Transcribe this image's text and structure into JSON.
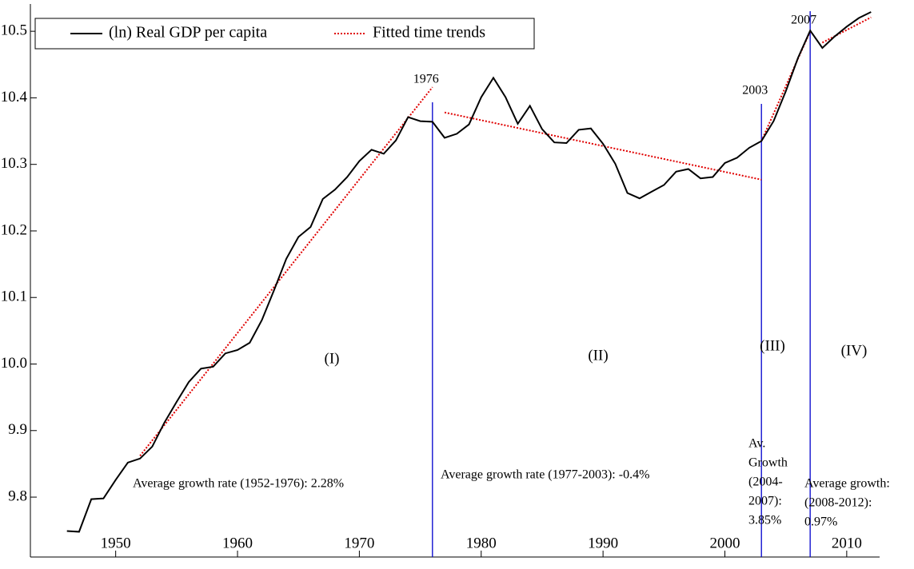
{
  "chart_data": {
    "type": "line",
    "x": [
      1946,
      1947,
      1948,
      1949,
      1950,
      1951,
      1952,
      1953,
      1954,
      1955,
      1956,
      1957,
      1958,
      1959,
      1960,
      1961,
      1962,
      1963,
      1964,
      1965,
      1966,
      1967,
      1968,
      1969,
      1970,
      1971,
      1972,
      1973,
      1974,
      1975,
      1976,
      1977,
      1978,
      1979,
      1980,
      1981,
      1982,
      1983,
      1984,
      1985,
      1986,
      1987,
      1988,
      1989,
      1990,
      1991,
      1992,
      1993,
      1994,
      1995,
      1996,
      1997,
      1998,
      1999,
      2000,
      2001,
      2002,
      2003,
      2004,
      2005,
      2006,
      2007,
      2008,
      2009,
      2010,
      2011,
      2012
    ],
    "series": [
      {
        "name": "(ln) Real GDP per capita",
        "color": "#000000",
        "values": [
          9.749,
          9.748,
          9.797,
          9.798,
          9.826,
          9.852,
          9.858,
          9.876,
          9.912,
          9.943,
          9.973,
          9.993,
          9.996,
          10.016,
          10.021,
          10.032,
          10.066,
          10.111,
          10.158,
          10.191,
          10.206,
          10.248,
          10.262,
          10.281,
          10.305,
          10.322,
          10.316,
          10.336,
          10.371,
          10.365,
          10.364,
          10.34,
          10.346,
          10.36,
          10.401,
          10.43,
          10.401,
          10.361,
          10.388,
          10.353,
          10.333,
          10.332,
          10.352,
          10.354,
          10.331,
          10.301,
          10.257,
          10.249,
          10.259,
          10.269,
          10.289,
          10.293,
          10.279,
          10.281,
          10.302,
          10.31,
          10.325,
          10.335,
          10.365,
          10.41,
          10.46,
          10.501,
          10.475,
          10.492,
          10.507,
          10.52,
          10.529
        ]
      },
      {
        "name": "Fitted time trends",
        "color": "#e00000",
        "dotted": true,
        "x": [
          1952,
          1976,
          null,
          1977,
          2003,
          null,
          2003,
          2007,
          null,
          2008,
          2012
        ],
        "values": [
          9.862,
          10.416,
          null,
          10.378,
          10.277,
          null,
          10.335,
          10.5,
          null,
          10.483,
          10.521
        ]
      }
    ],
    "vlines": [
      1976,
      2003,
      2007
    ],
    "vline_color": "#0000cc",
    "periods": [
      "(I)",
      "(II)",
      "(III)",
      "(IV)"
    ],
    "annotations": [
      "Average growth rate (1952-1976): 2.28%",
      "Average growth rate (1977-2003): -0.4%",
      [
        "Av.",
        "Growth",
        "(2004-",
        "2007):",
        "3.85%"
      ],
      [
        "Average growth:",
        "(2008-2012):",
        "0.97%"
      ]
    ],
    "xlim": [
      1943,
      2012.7
    ],
    "xticks": [
      1950,
      1960,
      1970,
      1980,
      1990,
      2000,
      2010
    ],
    "ylim": [
      9.71,
      10.541
    ],
    "yticks": [
      {
        "value": 9.8,
        "label": "9.8"
      },
      {
        "value": 9.9,
        "label": "9.9"
      },
      {
        "value": 10,
        "label": "10.0"
      },
      {
        "value": 10.1,
        "label": "10.1"
      },
      {
        "value": 10.2,
        "label": "10.2"
      },
      {
        "value": 10.3,
        "label": "10.3"
      },
      {
        "value": 10.4,
        "label": "10.4"
      },
      {
        "value": 10.5,
        "label": "10.5"
      }
    ],
    "legend": "top-left"
  }
}
